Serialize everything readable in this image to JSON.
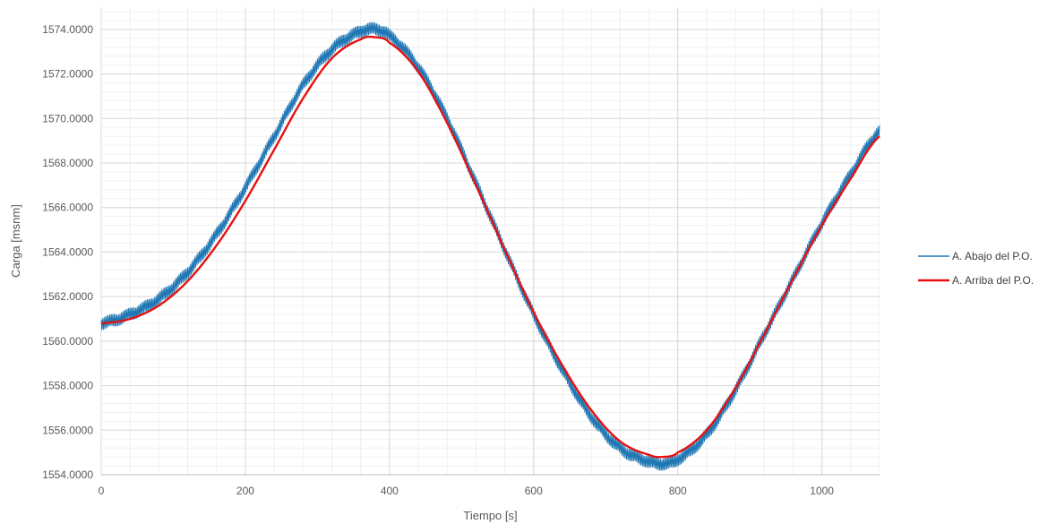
{
  "chart_data": {
    "type": "line",
    "title": "",
    "xlabel": "Tiempo  [s]",
    "ylabel": "Carga [msnm]",
    "xlim": [
      0,
      1080
    ],
    "ylim": [
      1554,
      1575
    ],
    "x_ticks": [
      0,
      200,
      400,
      600,
      800,
      1000
    ],
    "x_tick_labels": [
      "0",
      "200",
      "400",
      "600",
      "800",
      "1000"
    ],
    "y_ticks": [
      1554,
      1556,
      1558,
      1560,
      1562,
      1564,
      1566,
      1568,
      1570,
      1572,
      1574
    ],
    "y_tick_labels": [
      "1554.0000",
      "1556.0000",
      "1558.0000",
      "1560.0000",
      "1562.0000",
      "1564.0000",
      "1566.0000",
      "1568.0000",
      "1570.0000",
      "1572.0000",
      "1574.0000"
    ],
    "grid": "major and minor",
    "legend_position": "right",
    "series": [
      {
        "name": "A. Abajo del P.O.",
        "color": "#1f77b4",
        "noise_amplitude": 0.3,
        "x": [
          0,
          40,
          80,
          120,
          160,
          200,
          240,
          280,
          320,
          360,
          380,
          400,
          440,
          480,
          520,
          560,
          600,
          640,
          680,
          720,
          760,
          780,
          800,
          840,
          880,
          920,
          960,
          1000,
          1040,
          1080
        ],
        "y": [
          1560.8,
          1561.2,
          1561.9,
          1563.1,
          1564.8,
          1566.9,
          1569.2,
          1571.5,
          1573.1,
          1573.9,
          1574.0,
          1573.7,
          1572.3,
          1570.0,
          1567.1,
          1564.1,
          1561.2,
          1558.7,
          1556.6,
          1555.2,
          1554.6,
          1554.5,
          1554.7,
          1555.8,
          1557.8,
          1560.3,
          1562.8,
          1565.3,
          1567.5,
          1569.4
        ]
      },
      {
        "name": "A. Arriba del P.O.",
        "color": "#e81010",
        "x": [
          0,
          40,
          80,
          120,
          160,
          200,
          240,
          280,
          320,
          360,
          380,
          400,
          440,
          480,
          520,
          560,
          600,
          640,
          680,
          720,
          760,
          780,
          800,
          840,
          880,
          920,
          960,
          1000,
          1040,
          1080
        ],
        "y": [
          1560.8,
          1561.0,
          1561.6,
          1562.7,
          1564.3,
          1566.3,
          1568.6,
          1570.9,
          1572.7,
          1573.55,
          1573.65,
          1573.4,
          1572.1,
          1569.8,
          1567.0,
          1564.1,
          1561.3,
          1558.9,
          1556.9,
          1555.5,
          1554.9,
          1554.8,
          1555.0,
          1556.0,
          1557.9,
          1560.3,
          1562.8,
          1565.2,
          1567.3,
          1569.2
        ]
      }
    ]
  }
}
